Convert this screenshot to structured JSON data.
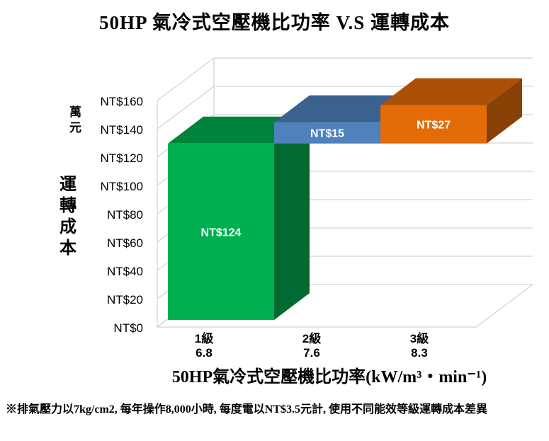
{
  "chart_data": {
    "type": "bar",
    "subtype": "3d-waterfall",
    "title": "50HP 氣冷式空壓機比功率 V.S 運轉成本",
    "xlabel": "50HP氣冷式空壓機比功率(kW/m³・min⁻¹)",
    "ylabel": "運轉成本",
    "yunit": "萬元",
    "categories": [
      [
        "1級",
        "6.8"
      ],
      [
        "2級",
        "7.6"
      ],
      [
        "3級",
        "8.3"
      ]
    ],
    "bars": [
      {
        "base": 0,
        "value": 124,
        "label": "NT$124",
        "color": "#00b050"
      },
      {
        "base": 124,
        "value": 15,
        "label": "NT$15",
        "color": "#4f81bd"
      },
      {
        "base": 124,
        "value": 27,
        "label": "NT$27",
        "color": "#e36c09"
      }
    ],
    "ylim": [
      0,
      160
    ],
    "yticks": [
      "NT$0",
      "NT$20",
      "NT$40",
      "NT$60",
      "NT$80",
      "NT$100",
      "NT$120",
      "NT$140",
      "NT$160"
    ],
    "grid": true
  },
  "footnote": "※排氣壓力以7kg/cm2, 每年操作8,000小時, 每度電以NT$3.5元計, 使用不同能效等級運轉成本差異"
}
